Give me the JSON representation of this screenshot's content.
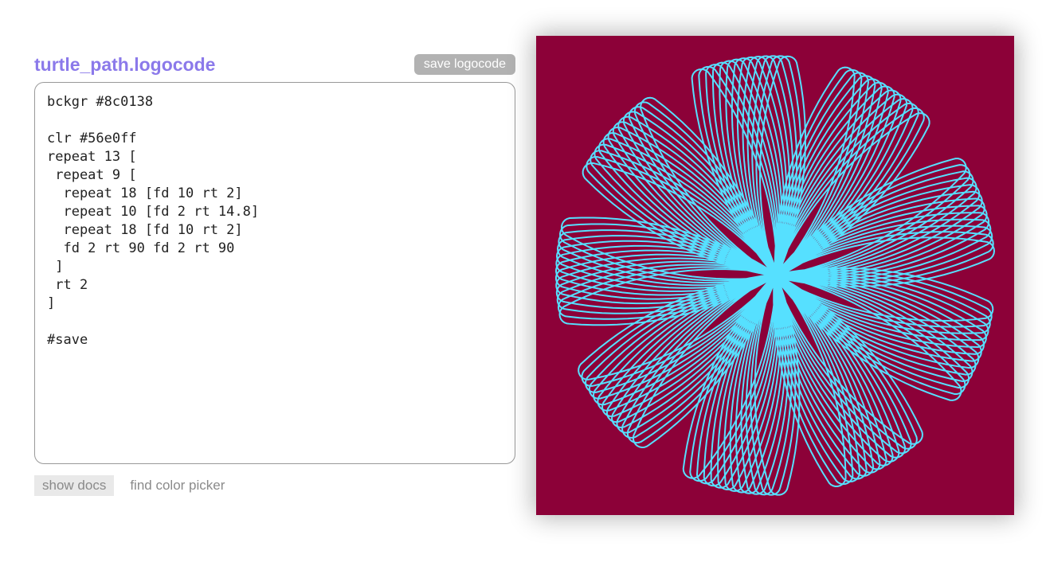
{
  "editor": {
    "filename": "turtle_path.logocode",
    "save_button_label": "save logocode",
    "code": "bckgr #8c0138\n\nclr #56e0ff\nrepeat 13 [\n repeat 9 [\n  repeat 18 [fd 10 rt 2]\n  repeat 10 [fd 2 rt 14.8]\n  repeat 18 [fd 10 rt 2]\n  fd 2 rt 90 fd 2 rt 90\n ]\n rt 2\n]\n\n#save"
  },
  "footer": {
    "show_docs_label": "show docs",
    "find_color_picker_label": "find color picker"
  },
  "turtle_canvas": {
    "background": "#8c0138",
    "stroke_color": "#56e0ff",
    "stroke_width": 2,
    "fit_margin": 25,
    "css_width": 600,
    "css_height": 602,
    "start_heading": "up",
    "rt_direction": "clockwise"
  },
  "theme": {
    "title_color": "#8b79ea",
    "save_button_bg": "#b2b2b2",
    "save_button_text": "#ffffff",
    "muted_text": "#8a8a8a",
    "docs_button_bg": "#e9e9e9",
    "editor_border": "#999999",
    "code_text": "#222222",
    "page_bg": "#ffffff"
  }
}
